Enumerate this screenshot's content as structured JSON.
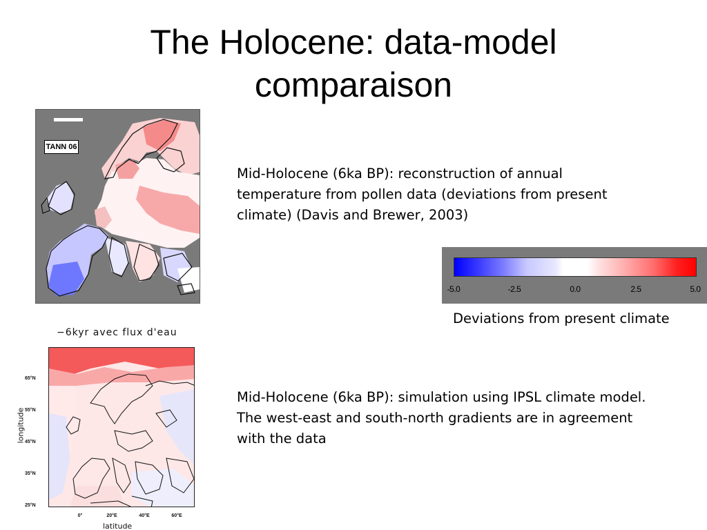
{
  "slide": {
    "title_line1": "The Holocene: data-model",
    "title_line2": "comparaison"
  },
  "pollen_panel": {
    "map_label": "TANN 06",
    "caption": "Mid-Holocene (6ka BP): reconstruction of annual temperature from pollen data (deviations from present climate) (Davis and Brewer, 2003)"
  },
  "colorbar": {
    "ticks": [
      "-5.0",
      "-2.5",
      "0.0",
      "2.5",
      "5.0"
    ],
    "caption": "Deviations from present climate",
    "colors": {
      "min": "#0000ff",
      "mid": "#ffffff",
      "max": "#ff0000"
    }
  },
  "model_panel": {
    "title": "−6kyr avec flux d'eau",
    "y_axis_title": "longitude",
    "x_axis_title": "latitude",
    "y_ticks": [
      "65°N",
      "55°N",
      "45°N",
      "35°N",
      "25°N"
    ],
    "x_ticks": [
      "0°",
      "20°E",
      "40°E",
      "60°E"
    ],
    "caption": "Mid-Holocene (6ka BP): simulation using IPSL climate model. The west-east and south-north gradients are in agreement with the data"
  }
}
